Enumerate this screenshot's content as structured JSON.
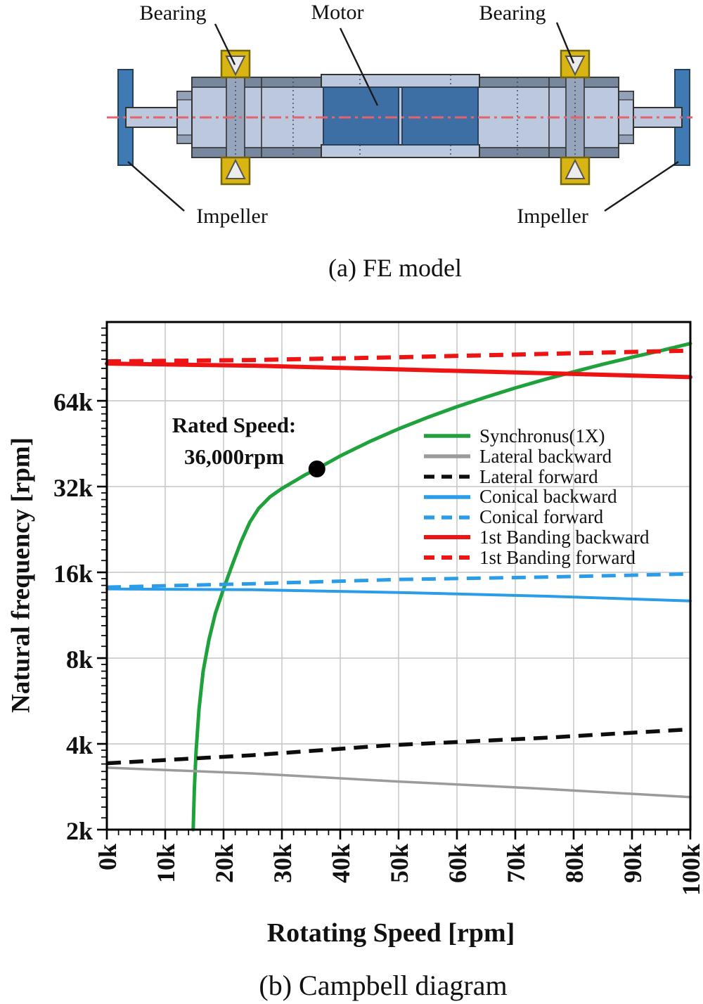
{
  "figure": {
    "panel_a": {
      "caption": "(a) FE model",
      "labels": {
        "bearing": "Bearing",
        "motor": "Motor",
        "impeller": "Impeller"
      },
      "colors": {
        "impeller_blue": "#3f7ab3",
        "motor_blue": "#3d6fa5",
        "body_light": "#bcc8de",
        "band_dark": "#76879e",
        "bearing_column": "#96a5bb",
        "step_shade": "#93a2b8",
        "bearing_yellow": "#d8b512",
        "bearing_border": "#74650a",
        "triangle_fill": "#ececec",
        "outline": "#333333",
        "centerline_red": "#e4636d",
        "leader_line": "#1a1a1a"
      }
    },
    "panel_b": {
      "caption": "(b) Campbell diagram"
    }
  },
  "chart_data": {
    "type": "line",
    "title": "",
    "xlabel": "Rotating Speed [rpm]",
    "ylabel": "Natural frequency [rpm]",
    "units": "values in thousands of rpm (k)",
    "x_scale": "linear",
    "y_scale": "log2",
    "xlim_krpm": [
      0,
      100
    ],
    "ylim_krpm": [
      2,
      121
    ],
    "x_ticks": [
      "0k",
      "10k",
      "20k",
      "30k",
      "40k",
      "50k",
      "60k",
      "70k",
      "80k",
      "90k",
      "100k"
    ],
    "x_tick_krpm": [
      0,
      10,
      20,
      30,
      40,
      50,
      60,
      70,
      80,
      90,
      100
    ],
    "x_minor_step_krpm": 2,
    "y_ticks": [
      "2k",
      "4k",
      "8k",
      "16k",
      "32k",
      "64k"
    ],
    "y_tick_krpm": [
      2,
      4,
      8,
      16,
      32,
      64
    ],
    "y_grid_krpm": [
      4,
      8,
      16,
      32,
      64
    ],
    "grid": true,
    "grid_color": "#c9c9c9",
    "axis_color": "#000000",
    "text_color": "#111111",
    "legend_position": "center-right, no frame",
    "annotation": {
      "line1": "Rated Speed:",
      "line2": "36,000rpm",
      "x_krpm": 22,
      "y_krpm": 52
    },
    "marker": {
      "name": "rated-speed-point",
      "x_krpm": 36,
      "y_krpm": 36.9,
      "color": "#000000",
      "radius": 12
    },
    "series": [
      {
        "name": "Synchronus(1X)",
        "color": "#1fa23c",
        "style": "solid",
        "width": 5,
        "points": [
          [
            14.8,
            2
          ],
          [
            15.0,
            2.8
          ],
          [
            15.3,
            3.8
          ],
          [
            15.8,
            5.3
          ],
          [
            16.5,
            7.2
          ],
          [
            17.5,
            9.3
          ],
          [
            18.6,
            11.5
          ],
          [
            20,
            14
          ],
          [
            21.5,
            17
          ],
          [
            23,
            20.5
          ],
          [
            24.5,
            24
          ],
          [
            26,
            26.8
          ],
          [
            28,
            29.5
          ],
          [
            30,
            31.5
          ],
          [
            32,
            33.3
          ],
          [
            34,
            35.2
          ],
          [
            36,
            36.9
          ],
          [
            40,
            41
          ],
          [
            45,
            46
          ],
          [
            50,
            51
          ],
          [
            55,
            56
          ],
          [
            60,
            61
          ],
          [
            65,
            66
          ],
          [
            70,
            71
          ],
          [
            75,
            76
          ],
          [
            79.6,
            80.5
          ],
          [
            85,
            86
          ],
          [
            90,
            91
          ],
          [
            95,
            96
          ],
          [
            100,
            101.7
          ]
        ]
      },
      {
        "name": "Lateral backward",
        "color": "#9b9b9b",
        "style": "solid",
        "width": 3.5,
        "points": [
          [
            0,
            3.3
          ],
          [
            25,
            3.15
          ],
          [
            50,
            2.95
          ],
          [
            75,
            2.78
          ],
          [
            100,
            2.6
          ]
        ]
      },
      {
        "name": "Lateral forward",
        "color": "#0d0d0d",
        "style": "dashed",
        "width": 5.5,
        "points": [
          [
            0,
            3.42
          ],
          [
            25,
            3.65
          ],
          [
            48,
            3.95
          ],
          [
            75,
            4.2
          ],
          [
            100,
            4.5
          ]
        ]
      },
      {
        "name": "Conical backward",
        "color": "#2b9de8",
        "style": "solid",
        "width": 4,
        "points": [
          [
            0,
            14.0
          ],
          [
            25,
            13.9
          ],
          [
            50,
            13.6
          ],
          [
            75,
            13.2
          ],
          [
            100,
            12.7
          ]
        ]
      },
      {
        "name": "Conical forward",
        "color": "#2b9de8",
        "style": "dashed",
        "width": 5,
        "points": [
          [
            0,
            14.2
          ],
          [
            25,
            14.6
          ],
          [
            50,
            15.1
          ],
          [
            75,
            15.4
          ],
          [
            100,
            15.8
          ]
        ]
      },
      {
        "name": "1st Banding backward",
        "color": "#ee1414",
        "style": "solid",
        "width": 6,
        "points": [
          [
            0,
            86.5
          ],
          [
            25,
            85
          ],
          [
            50,
            82.5
          ],
          [
            75,
            80
          ],
          [
            100,
            77.5
          ]
        ]
      },
      {
        "name": "1st Banding forward",
        "color": "#ee1414",
        "style": "dashed",
        "width": 6,
        "points": [
          [
            0,
            88
          ],
          [
            25,
            89
          ],
          [
            50,
            91
          ],
          [
            75,
            93.5
          ],
          [
            100,
            96
          ]
        ]
      }
    ]
  }
}
